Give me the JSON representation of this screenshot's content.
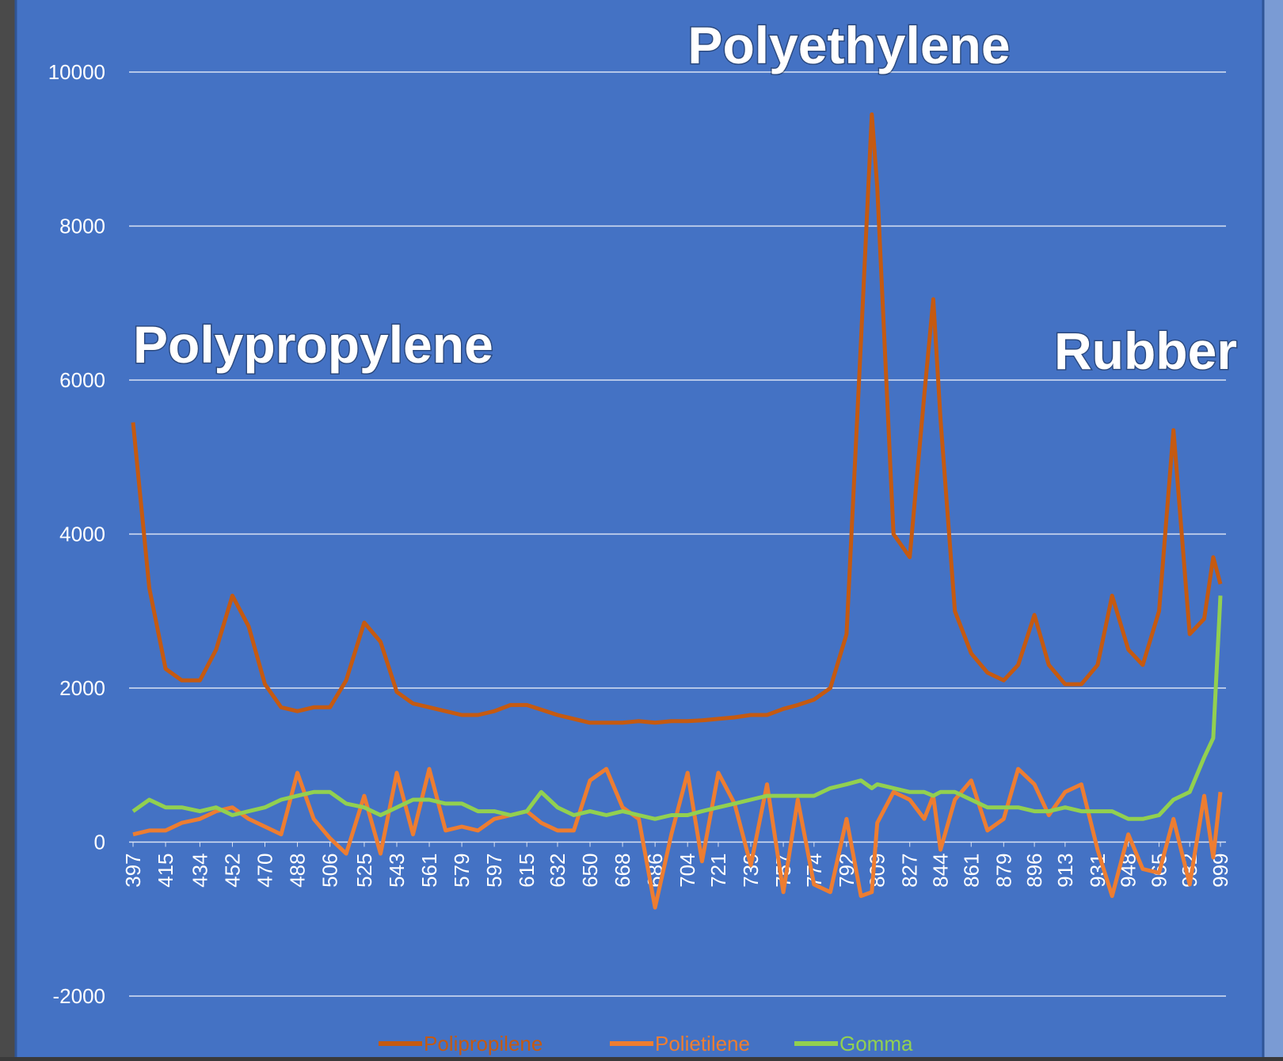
{
  "chart_data": {
    "type": "line",
    "annotations": [
      "Polyethylene",
      "Polypropylene",
      "Rubber"
    ],
    "x": [
      397,
      406,
      415,
      424,
      434,
      443,
      452,
      461,
      470,
      479,
      488,
      497,
      506,
      515,
      525,
      534,
      543,
      552,
      561,
      570,
      579,
      588,
      597,
      606,
      615,
      623,
      632,
      641,
      650,
      659,
      668,
      677,
      686,
      695,
      704,
      712,
      721,
      730,
      739,
      748,
      757,
      765,
      774,
      783,
      792,
      800,
      806,
      809,
      818,
      827,
      835,
      840,
      844,
      852,
      861,
      870,
      879,
      887,
      896,
      904,
      913,
      922,
      931,
      939,
      948,
      956,
      965,
      973,
      982,
      990,
      995,
      999
    ],
    "xlim": [
      397,
      999
    ],
    "xticks": [
      397,
      415,
      434,
      452,
      470,
      488,
      506,
      525,
      543,
      561,
      579,
      597,
      615,
      632,
      650,
      668,
      686,
      704,
      721,
      739,
      757,
      774,
      792,
      809,
      827,
      844,
      861,
      879,
      896,
      913,
      931,
      948,
      965,
      982,
      999
    ],
    "ylim": [
      -2000,
      10000
    ],
    "yticks": [
      -2000,
      0,
      2000,
      4000,
      6000,
      8000,
      10000
    ],
    "grid": true,
    "legend": "bottom",
    "series": [
      {
        "name": "Polipropilene",
        "color": "#c55a11",
        "values": [
          5450,
          3300,
          2250,
          2100,
          2100,
          2500,
          3200,
          2800,
          2050,
          1750,
          1700,
          1750,
          1750,
          2100,
          2850,
          2600,
          1950,
          1800,
          1750,
          1700,
          1650,
          1650,
          1700,
          1780,
          1780,
          1720,
          1650,
          1600,
          1550,
          1550,
          1550,
          1570,
          1550,
          1570,
          1570,
          1580,
          1600,
          1620,
          1650,
          1650,
          1730,
          1780,
          1850,
          2000,
          2700,
          6500,
          9450,
          8500,
          4000,
          3700,
          5800,
          7050,
          5500,
          3000,
          2450,
          2200,
          2100,
          2300,
          2950,
          2300,
          2050,
          2050,
          2300,
          3200,
          2500,
          2300,
          3000,
          5350,
          2700,
          2900,
          3700,
          3350
        ]
      },
      {
        "name": "Polietilene",
        "color": "#ed7d31",
        "values": [
          100,
          150,
          150,
          250,
          300,
          400,
          450,
          300,
          200,
          100,
          900,
          300,
          50,
          -150,
          600,
          -150,
          900,
          100,
          950,
          150,
          200,
          150,
          300,
          350,
          400,
          250,
          150,
          150,
          800,
          950,
          450,
          300,
          -850,
          100,
          900,
          -250,
          900,
          500,
          -300,
          750,
          -650,
          550,
          -550,
          -650,
          300,
          -700,
          -650,
          250,
          650,
          550,
          300,
          600,
          -100,
          550,
          800,
          150,
          300,
          950,
          750,
          350,
          650,
          750,
          -100,
          -700,
          100,
          -350,
          -400,
          300,
          -550,
          600,
          -200,
          650
        ]
      },
      {
        "name": "Gomma",
        "color": "#92d050",
        "values": [
          400,
          550,
          450,
          450,
          400,
          450,
          350,
          400,
          450,
          550,
          600,
          650,
          650,
          500,
          450,
          350,
          450,
          550,
          550,
          500,
          500,
          400,
          400,
          350,
          400,
          650,
          450,
          350,
          400,
          350,
          400,
          350,
          300,
          350,
          350,
          400,
          450,
          500,
          550,
          600,
          600,
          600,
          600,
          700,
          750,
          800,
          700,
          750,
          700,
          650,
          650,
          600,
          650,
          650,
          550,
          450,
          450,
          450,
          400,
          400,
          450,
          400,
          400,
          400,
          300,
          300,
          350,
          550,
          650,
          1100,
          1350,
          3200
        ]
      }
    ]
  }
}
